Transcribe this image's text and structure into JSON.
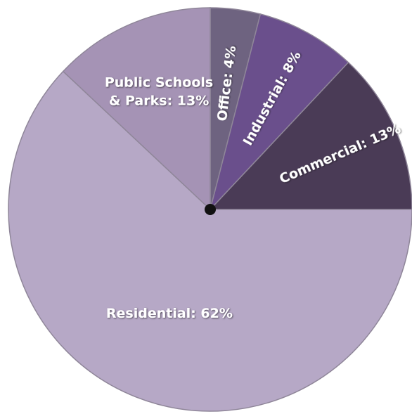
{
  "chart_data": {
    "type": "pie",
    "title": "",
    "slices": [
      {
        "name": "Office",
        "value": 4,
        "label": "Office:  4%",
        "color": "#6e6380"
      },
      {
        "name": "Industrial",
        "value": 8,
        "label": "Industrial:  8%",
        "color": "#6a4f8c"
      },
      {
        "name": "Commercial",
        "value": 13,
        "label": "Commercial: 13%",
        "color": "#4a3b56"
      },
      {
        "name": "Residential",
        "value": 62,
        "label": "Residential:  62%",
        "color": "#b6a8c6"
      },
      {
        "name": "Public Schools & Parks",
        "value": 13,
        "label_lines": [
          "Public Schools",
          "& Parks: 13%"
        ],
        "color": "#a593b5"
      }
    ]
  }
}
